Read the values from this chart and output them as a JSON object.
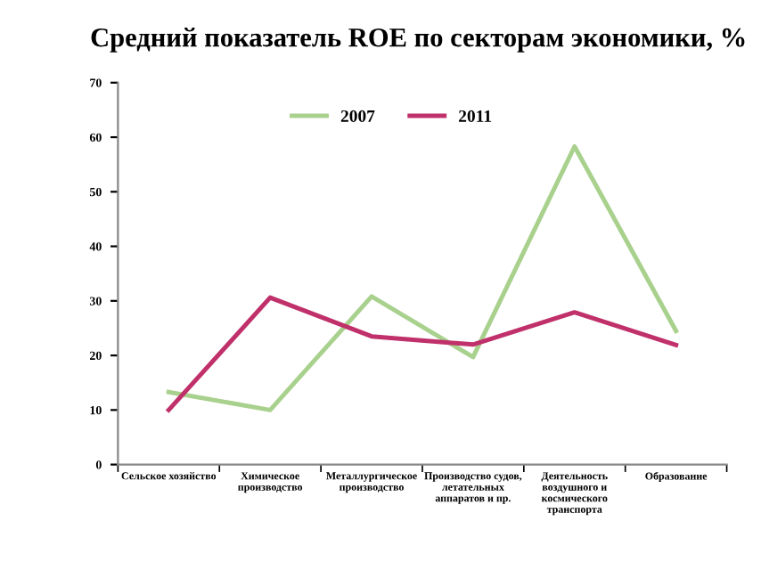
{
  "chart_data": {
    "type": "line",
    "title": "Средний показатель ROE по секторам экономики, %",
    "categories": [
      "Сельское хозяйство",
      "Химическое\nпроизводство",
      "Металлургическое\nпроизводство",
      "Производство судов,\nлетательных\nаппаратов и пр.",
      "Деятельность\nвоздушного и\nкосмического\nтранспорта",
      "Образование"
    ],
    "series": [
      {
        "name": "2007",
        "color": "#a9d18e",
        "values": [
          13.3,
          10,
          30.8,
          19.7,
          58.3,
          24.5
        ]
      },
      {
        "name": "2011",
        "color": "#c0306a",
        "values": [
          10,
          30.6,
          23.5,
          22,
          27.9,
          21.9
        ]
      }
    ],
    "ylim": [
      0,
      70
    ],
    "yticks": [
      0,
      10,
      20,
      30,
      40,
      50,
      60,
      70
    ],
    "grid": false,
    "legend": "top",
    "line_style": "solid",
    "marker": "none"
  }
}
